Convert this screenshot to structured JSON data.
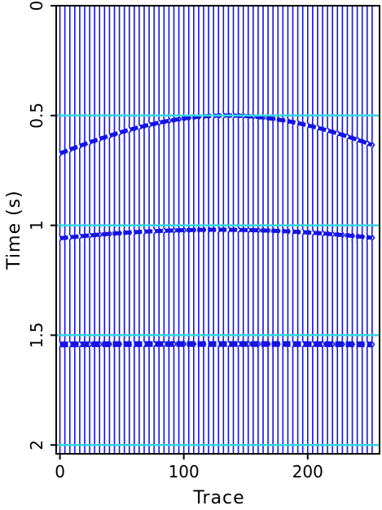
{
  "chart_data": {
    "type": "line",
    "xlabel": "Trace",
    "ylabel": "Time (s)",
    "xlim": [
      -3,
      258
    ],
    "ylim": [
      0,
      2.04
    ],
    "y_inverted": true,
    "xticks": [
      0,
      100,
      200
    ],
    "xtick_labels": [
      "0",
      "100",
      "200"
    ],
    "yticks": [
      0,
      0.5,
      1,
      1.5,
      2
    ],
    "ytick_labels": [
      "0",
      "0.5",
      "1",
      "1.5",
      "2"
    ],
    "trace_count": 64,
    "trace_spacing": 4,
    "colors": {
      "wiggle": "#1414e6",
      "reference": "#33d6e0",
      "axis": "#000000"
    },
    "reference_lines": [
      0.5,
      1.0,
      1.5,
      2.0
    ],
    "events": [
      {
        "name": "",
        "apex_trace": 135,
        "apex_time": 0.5,
        "velocity": 0.3
      },
      {
        "name": "",
        "apex_trace": 128,
        "apex_time": 1.02,
        "velocity": 0.45
      },
      {
        "name": "",
        "apex_trace": 128,
        "apex_time": 1.54,
        "velocity": 1.6
      }
    ]
  }
}
